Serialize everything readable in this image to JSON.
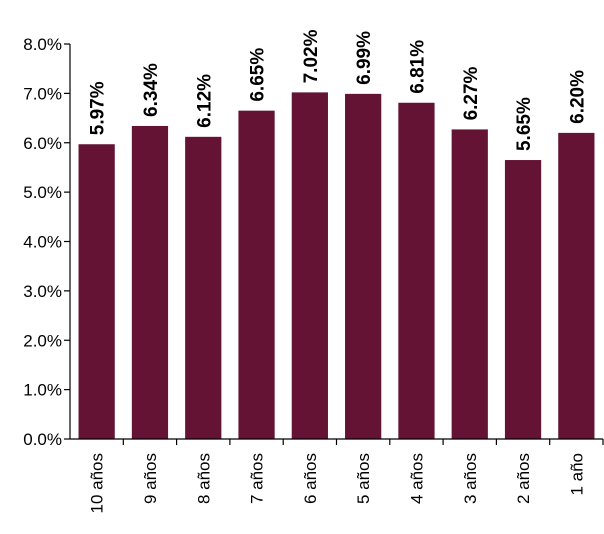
{
  "chart_data": {
    "type": "bar",
    "categories": [
      "10 años",
      "9 años",
      "8 años",
      "7 años",
      "6 años",
      "5 años",
      "4 años",
      "3 años",
      "2 años",
      "1 año"
    ],
    "values": [
      5.97,
      6.34,
      6.12,
      6.65,
      7.02,
      6.99,
      6.81,
      6.27,
      5.65,
      6.2
    ],
    "data_labels": [
      "5.97%",
      "6.34%",
      "6.12%",
      "6.65%",
      "7.02%",
      "6.99%",
      "6.81%",
      "6.27%",
      "5.65%",
      "6.20%"
    ],
    "y_ticks": [
      "0.0%",
      "1.0%",
      "2.0%",
      "3.0%",
      "4.0%",
      "5.0%",
      "6.0%",
      "7.0%",
      "8.0%"
    ],
    "ylim": [
      0,
      8
    ],
    "grid": false,
    "legend": "none",
    "bar_color": "#641334"
  }
}
